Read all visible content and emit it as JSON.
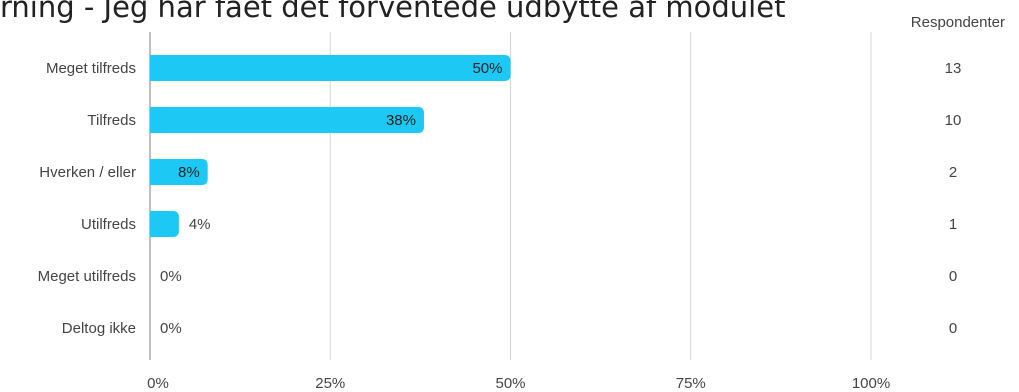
{
  "title": "rning - Jeg har fået det forventede udbytte af modulet",
  "respondents_header": "Respondenter",
  "colors": {
    "bar": "#1ec8f5",
    "grid": "#d6d6d6",
    "axis": "#aaaaaa",
    "text": "#444444",
    "label_in_bar": "#222222"
  },
  "chart_data": {
    "type": "bar",
    "orientation": "horizontal",
    "categories": [
      "Meget tilfreds",
      "Tilfreds",
      "Hverken / eller",
      "Utilfreds",
      "Meget utilfreds",
      "Deltog ikke"
    ],
    "values": [
      50,
      38,
      8,
      4,
      0,
      0
    ],
    "value_labels": [
      "50%",
      "38%",
      "8%",
      "4%",
      "0%",
      "0%"
    ],
    "respondents": [
      13,
      10,
      2,
      1,
      0,
      0
    ],
    "xlim": [
      0,
      100
    ],
    "xticks": [
      0,
      25,
      50,
      75,
      100
    ],
    "xtick_labels": [
      "0%",
      "25%",
      "50%",
      "75%",
      "100%"
    ],
    "grid": true,
    "unit": "%"
  }
}
